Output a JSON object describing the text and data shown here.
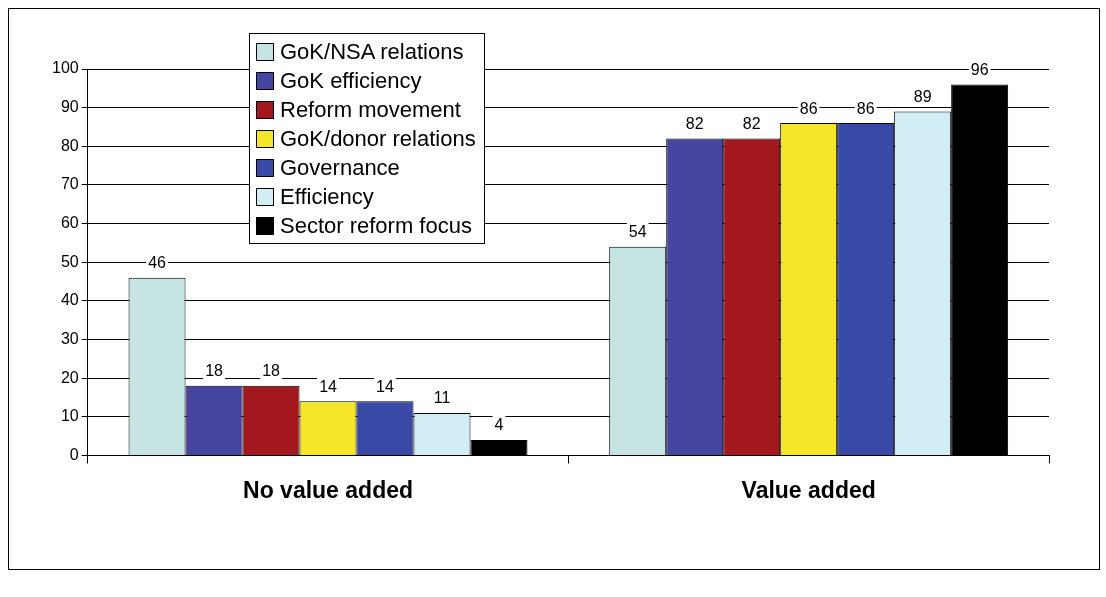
{
  "chart_data": {
    "type": "bar",
    "categories": [
      "No value added",
      "Value added"
    ],
    "series": [
      {
        "name": "GoK/NSA relations",
        "color": "#c6e4e4",
        "values": [
          46,
          54
        ]
      },
      {
        "name": "GoK efficiency",
        "color": "#4646a2",
        "values": [
          18,
          82
        ]
      },
      {
        "name": "Reform movement",
        "color": "#a3181e",
        "values": [
          18,
          82
        ]
      },
      {
        "name": "GoK/donor relations",
        "color": "#f6e62a",
        "values": [
          14,
          86
        ]
      },
      {
        "name": "Governance",
        "color": "#3949a6",
        "values": [
          14,
          86
        ]
      },
      {
        "name": "Efficiency",
        "color": "#d2eef4",
        "values": [
          11,
          89
        ]
      },
      {
        "name": "Sector reform focus",
        "color": "#000000",
        "values": [
          4,
          96
        ]
      }
    ],
    "ylim": [
      0,
      100
    ],
    "yticks": [
      0,
      10,
      20,
      30,
      40,
      50,
      60,
      70,
      80,
      90,
      100
    ],
    "grid": "y",
    "legend": "top left",
    "data_labels": true
  }
}
